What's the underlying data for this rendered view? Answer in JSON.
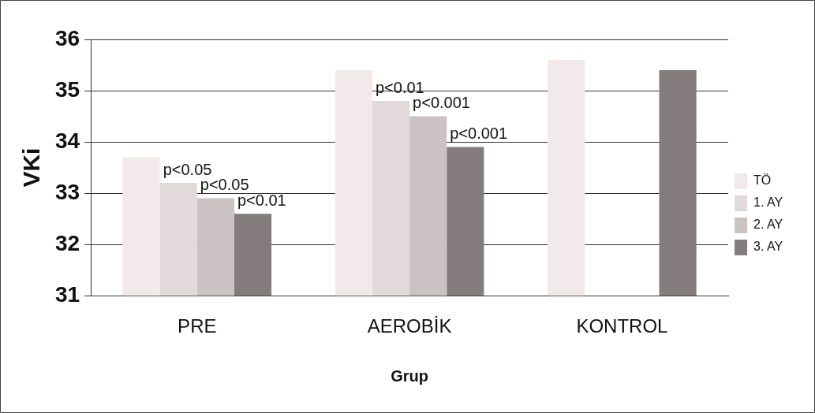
{
  "chart_data": {
    "type": "bar",
    "xlabel": "Grup",
    "ylabel": "VKi",
    "categories": [
      "PRE",
      "AEROBİK",
      "KONTROL"
    ],
    "series": [
      {
        "name": "TÖ",
        "color": "#f2eaea",
        "values": [
          33.7,
          35.4,
          35.6
        ]
      },
      {
        "name": "1. AY",
        "color": "#e2dada",
        "values": [
          33.2,
          34.8,
          null
        ],
        "value_labels": [
          "p<0.05",
          "p<0.01",
          null
        ]
      },
      {
        "name": "2. AY",
        "color": "#cbc3c3",
        "values": [
          32.9,
          34.5,
          null
        ],
        "value_labels": [
          "p<0.05",
          "p<0.001",
          null
        ]
      },
      {
        "name": "3. AY",
        "color": "#847c7c",
        "values": [
          32.6,
          33.9,
          35.4
        ],
        "value_labels": [
          "p<0.01",
          "p<0.001",
          null
        ]
      }
    ],
    "ylim": [
      31,
      36
    ],
    "yticks": [
      31,
      32,
      33,
      34,
      35,
      36
    ],
    "grid": "y",
    "legend": "right"
  }
}
